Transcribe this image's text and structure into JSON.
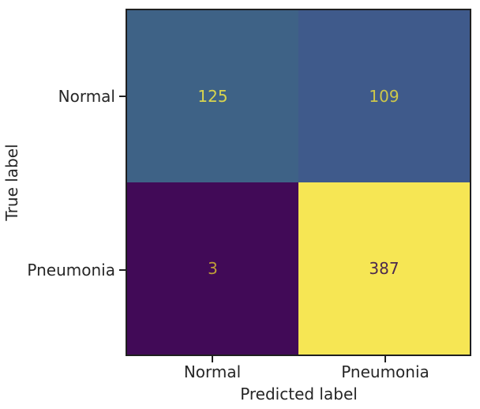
{
  "figure": {
    "background": "#ffffff",
    "axes_border_color": "#1f1f1f",
    "text_color": "#262626"
  },
  "chart_data": {
    "type": "heatmap",
    "subtype": "confusion-matrix",
    "title": "",
    "xlabel": "Predicted label",
    "ylabel": "True label",
    "x_categories": [
      "Normal",
      "Pneumonia"
    ],
    "y_categories": [
      "Normal",
      "Pneumonia"
    ],
    "values": [
      [
        125,
        109
      ],
      [
        3,
        387
      ]
    ],
    "colormap": "viridis",
    "color_range": [
      3,
      387
    ],
    "grid": false,
    "legend": "none",
    "cells": [
      {
        "row": "Normal",
        "col": "Normal",
        "value": "125",
        "bg": "#3e6286",
        "fg": "#d8d44e"
      },
      {
        "row": "Normal",
        "col": "Pneumonia",
        "value": "109",
        "bg": "#3f5a8b",
        "fg": "#cdc74a"
      },
      {
        "row": "Pneumonia",
        "col": "Normal",
        "value": "3",
        "bg": "#410a57",
        "fg": "#bf9e38"
      },
      {
        "row": "Pneumonia",
        "col": "Pneumonia",
        "value": "387",
        "bg": "#f6e654",
        "fg": "#4c2a4e"
      }
    ]
  }
}
